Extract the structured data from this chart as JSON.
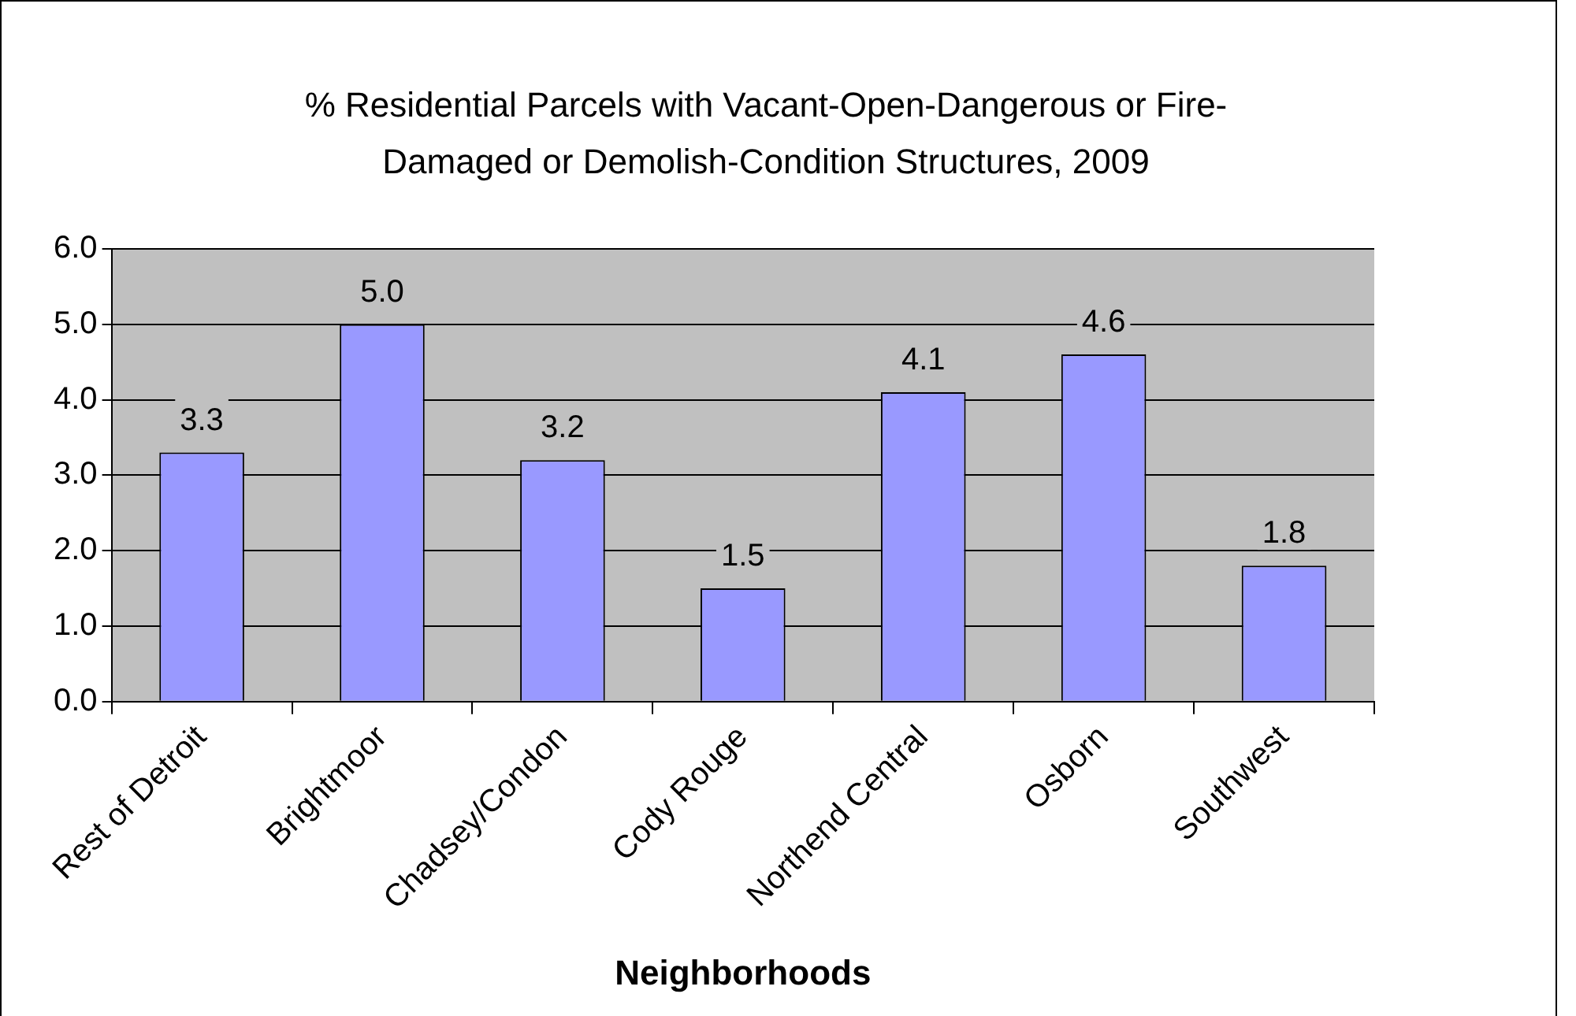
{
  "chart_data": {
    "type": "bar",
    "title": "% Residential Parcels with Vacant-Open-Dangerous or Fire-Damaged or Demolish-Condition Structures, 2009",
    "xlabel": "Neighborhoods",
    "categories": [
      "Rest of Detroit",
      "Brightmoor",
      "Chadsey/Condon",
      "Cody Rouge",
      "Northend Central",
      "Osborn",
      "Southwest"
    ],
    "values": [
      3.3,
      5.0,
      3.2,
      1.5,
      4.1,
      4.6,
      1.8
    ],
    "value_labels": [
      "3.3",
      "5.0",
      "3.2",
      "1.5",
      "4.1",
      "4.6",
      "1.8"
    ],
    "color": "#9999ff",
    "ylim": [
      0,
      6
    ],
    "yticks": [
      {
        "value": 0,
        "label": "0.0"
      },
      {
        "value": 1,
        "label": "1.0"
      },
      {
        "value": 2,
        "label": "2.0"
      },
      {
        "value": 3,
        "label": "3.0"
      },
      {
        "value": 4,
        "label": "4.0"
      },
      {
        "value": 5,
        "label": "5.0"
      },
      {
        "value": 6,
        "label": "6.0"
      }
    ],
    "grid": "y",
    "legend": false
  }
}
